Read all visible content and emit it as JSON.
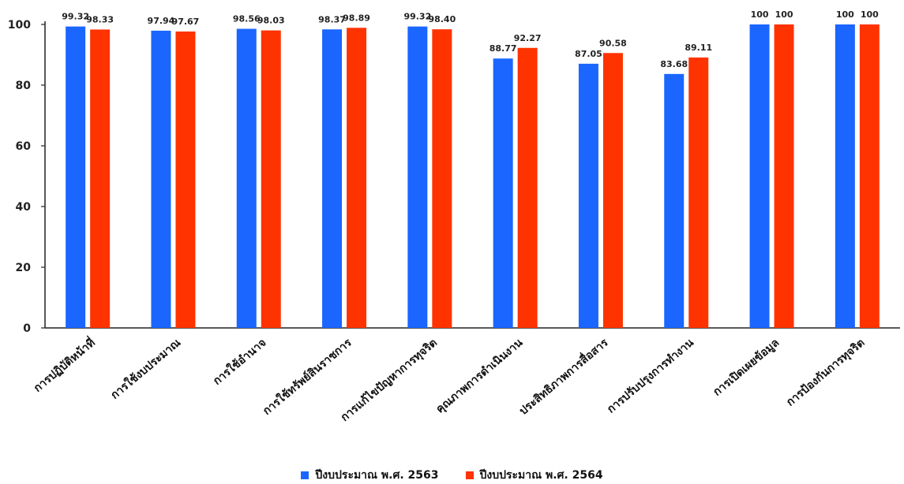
{
  "chart_data": {
    "type": "bar",
    "categories": [
      "การปฏิบัติหน้าที่",
      "การใช้งบประมาณ",
      "การใช้อำนาจ",
      "การใช้ทรัพย์สินราชการ",
      "การแก้ไขปัญหาการทุจริต",
      "คุณภาพการดำเนินงาน",
      "ประสิทธิภาพการสื่อสาร",
      "การปรับปรุงการทำงาน",
      "การเปิดเผยข้อมูล",
      "การป้องกันการทุจริต"
    ],
    "series": [
      {
        "name": "ปีงบประมาณ พ.ศ. 2563",
        "color": "#1a66ff",
        "values": [
          99.32,
          97.94,
          98.56,
          98.37,
          99.32,
          88.77,
          87.05,
          83.68,
          100,
          100
        ],
        "labels": [
          "99.32",
          "97.94",
          "98.56",
          "98.37",
          "99.32",
          "88.77",
          "87.05",
          "83.68",
          "100",
          "100"
        ]
      },
      {
        "name": "ปีงบประมาณ พ.ศ. 2564",
        "color": "#ff3300",
        "values": [
          98.33,
          97.67,
          98.03,
          98.89,
          98.4,
          92.27,
          90.58,
          89.11,
          100,
          100
        ],
        "labels": [
          "98.33",
          "97.67",
          "98.03",
          "98.89",
          "98.40",
          "92.27",
          "90.58",
          "89.11",
          "100",
          "100"
        ]
      }
    ],
    "yticks": [
      "0",
      "20",
      "40",
      "60",
      "80",
      "100"
    ],
    "ylim": [
      0,
      100
    ],
    "grid": false,
    "legend_position": "bottom"
  }
}
